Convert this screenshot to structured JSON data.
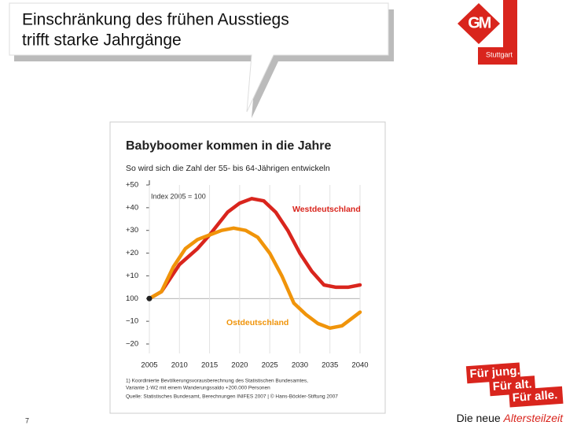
{
  "slide": {
    "title_lines": [
      "Einschränkung des frühen Ausstiegs",
      "trifft starke Jahrgänge"
    ],
    "location": "Stuttgart",
    "page": "7",
    "footer_prefix": "Die neue",
    "footer_highlight": "Altersteilzeit",
    "slogan": [
      "Für jung.",
      "Für alt.",
      "Für alle."
    ]
  },
  "chart_data": {
    "type": "line",
    "title": "Babyboomer kommen in die Jahre",
    "subtitle": "So wird sich die Zahl der 55- bis 64-Jährigen entwickeln",
    "annotation": "Index 2005 = 100",
    "notes": [
      "1) Koordinierte Bevölkerungsvorausberechnung des Statistischen Bundesamtes,",
      "Variante 1-W2 mit einem Wanderungssaldo +200.000 Personen",
      "Quelle: Statistisches Bundesamt, Berechnungen INIFES 2007 | © Hans-Böckler-Stiftung 2007"
    ],
    "xlim": [
      2005,
      2040
    ],
    "xticks": [
      2005,
      2010,
      2015,
      2020,
      2025,
      2030,
      2035,
      2040
    ],
    "ylim": [
      -20,
      50
    ],
    "yticks": [
      {
        "value": 50,
        "label": "+50"
      },
      {
        "value": 40,
        "label": "+40"
      },
      {
        "value": 30,
        "label": "+30"
      },
      {
        "value": 20,
        "label": "+20"
      },
      {
        "value": 10,
        "label": "+10"
      },
      {
        "value": 0,
        "label": "100"
      },
      {
        "value": -10,
        "label": "−10"
      },
      {
        "value": -20,
        "label": "−20"
      }
    ],
    "grid": true,
    "series": [
      {
        "name": "Westdeutschland",
        "color": "#d9251d",
        "x": [
          2005,
          2007,
          2010,
          2013,
          2015,
          2018,
          2020,
          2022,
          2024,
          2026,
          2028,
          2030,
          2032,
          2034,
          2036,
          2038,
          2040
        ],
        "values": [
          0,
          3,
          15,
          22,
          28,
          38,
          42,
          44,
          43,
          38,
          30,
          20,
          12,
          6,
          5,
          5,
          6
        ]
      },
      {
        "name": "Ostdeutschland",
        "color": "#f0940a",
        "x": [
          2005,
          2007,
          2009,
          2011,
          2013,
          2015,
          2017,
          2019,
          2021,
          2023,
          2025,
          2027,
          2029,
          2031,
          2033,
          2035,
          2037,
          2039,
          2040
        ],
        "values": [
          0,
          3,
          14,
          22,
          26,
          28,
          30,
          31,
          30,
          27,
          20,
          10,
          -2,
          -7,
          -11,
          -13,
          -12,
          -8,
          -6
        ]
      }
    ]
  }
}
